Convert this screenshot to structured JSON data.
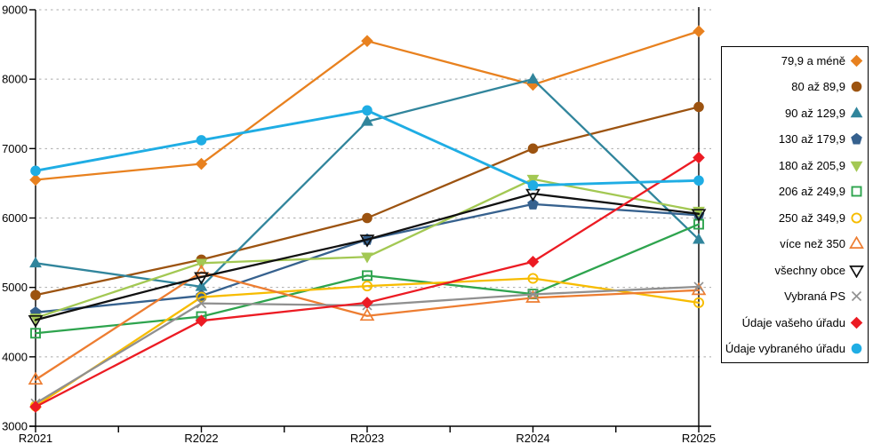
{
  "chart_data": {
    "type": "line",
    "title": "",
    "xlabel": "",
    "ylabel": "",
    "categories": [
      "R2021",
      "R2022",
      "R2023",
      "R2024",
      "R2025"
    ],
    "series": [
      {
        "name": "79,9 a méně",
        "color": "#E8811F",
        "marker": "diamond",
        "values": [
          6550,
          6780,
          8550,
          7920,
          8690
        ]
      },
      {
        "name": "80 až 89,9",
        "color": "#9C5310",
        "marker": "circle",
        "values": [
          4890,
          5400,
          6000,
          7000,
          7600
        ]
      },
      {
        "name": "90 až 129,9",
        "color": "#31859C",
        "marker": "triangle-up",
        "values": [
          5350,
          5010,
          7390,
          8000,
          5690
        ]
      },
      {
        "name": "130 až 179,9",
        "color": "#36618E",
        "marker": "pentagon",
        "values": [
          4640,
          4880,
          5690,
          6200,
          6040
        ]
      },
      {
        "name": "180 až 205,9",
        "color": "#A3C853",
        "marker": "triangle-down",
        "values": [
          4560,
          5350,
          5440,
          6560,
          6100
        ]
      },
      {
        "name": "206 až 249,9",
        "color": "#2EA44E",
        "marker": "square-open",
        "values": [
          4340,
          4580,
          5170,
          4905,
          5910
        ]
      },
      {
        "name": "250 až 349,9",
        "color": "#F7BC00",
        "marker": "circle-open",
        "values": [
          3290,
          4860,
          5020,
          5130,
          4780
        ]
      },
      {
        "name": "více než 350",
        "color": "#ED7D31",
        "marker": "triangle-up-open",
        "values": [
          3670,
          5220,
          4590,
          4850,
          4960
        ]
      },
      {
        "name": "všechny obce",
        "color": "#111111",
        "marker": "triangle-down-open",
        "values": [
          4530,
          5150,
          5690,
          6350,
          6060
        ]
      },
      {
        "name": "Vybraná PS",
        "color": "#909090",
        "marker": "x",
        "values": [
          3330,
          4770,
          4740,
          4900,
          5010
        ]
      },
      {
        "name": "Údaje vašeho úřadu",
        "color": "#EC1B23",
        "marker": "diamond",
        "values": [
          3280,
          4520,
          4780,
          5370,
          6870
        ]
      },
      {
        "name": "Údaje vybraného úřadu",
        "color": "#1FADE4",
        "marker": "circle",
        "values": [
          6680,
          7120,
          7550,
          6470,
          6540
        ]
      }
    ],
    "ylim": [
      3000,
      9000
    ],
    "ytick_step": 1000,
    "y_tick_labels": [
      "3000",
      "4000",
      "5000",
      "6000",
      "7000",
      "8000",
      "9000"
    ],
    "grid": "horizontal-dashed",
    "grid_color": "#ABABAB",
    "axis_color": "#000000",
    "legend_position": "right",
    "annotation_vline_category": "R2025",
    "minor_xticks_between_categories": 1
  }
}
